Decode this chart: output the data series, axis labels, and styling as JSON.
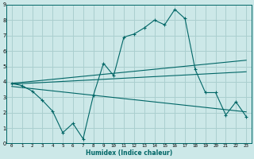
{
  "xlabel": "Humidex (Indice chaleur)",
  "background_color": "#cce8e8",
  "grid_color": "#aacfcf",
  "line_color": "#006666",
  "xlim": [
    -0.5,
    23.5
  ],
  "ylim": [
    0,
    9
  ],
  "x_ticks": [
    0,
    1,
    2,
    3,
    4,
    5,
    6,
    7,
    8,
    9,
    10,
    11,
    12,
    13,
    14,
    15,
    16,
    17,
    18,
    19,
    20,
    21,
    22,
    23
  ],
  "y_ticks": [
    0,
    1,
    2,
    3,
    4,
    5,
    6,
    7,
    8,
    9
  ],
  "curve_main": {
    "x": [
      0,
      1,
      2,
      3,
      4,
      5,
      6,
      7,
      8,
      9,
      10,
      11,
      12,
      13,
      14,
      15,
      16,
      17,
      18,
      19,
      20,
      21,
      22,
      23
    ],
    "y": [
      3.9,
      3.75,
      3.4,
      2.8,
      2.1,
      0.7,
      1.3,
      0.3,
      3.1,
      5.2,
      4.4,
      6.9,
      7.1,
      7.5,
      8.0,
      7.7,
      8.7,
      8.1,
      4.8,
      3.3,
      3.3,
      1.85,
      2.7,
      1.75
    ]
  },
  "line1": {
    "x": [
      0,
      23
    ],
    "y": [
      3.9,
      5.4
    ]
  },
  "line2": {
    "x": [
      0,
      23
    ],
    "y": [
      3.85,
      4.65
    ]
  },
  "line3": {
    "x": [
      0,
      23
    ],
    "y": [
      3.7,
      2.05
    ]
  }
}
